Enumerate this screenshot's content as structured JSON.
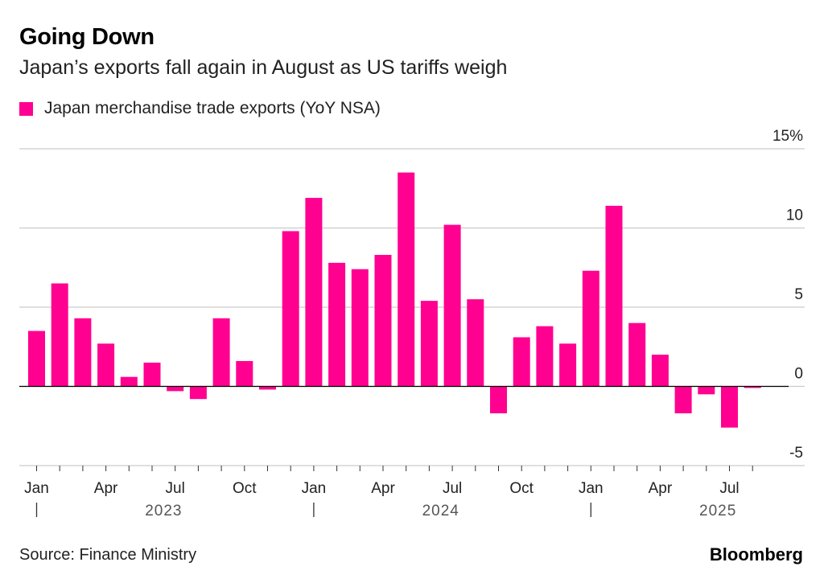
{
  "title": "Going Down",
  "subtitle": "Japan’s exports fall again in August as US tariffs weigh",
  "source": "Source: Finance Ministry",
  "brand": "Bloomberg",
  "colors": {
    "bar": "#ff0090",
    "grid": "#cccccc",
    "axis": "#000000"
  },
  "chart_data": {
    "type": "bar",
    "title": "Going Down",
    "series": [
      {
        "name": "Japan merchandise trade exports (YoY NSA)",
        "values": [
          3.5,
          6.5,
          4.3,
          2.7,
          0.6,
          1.5,
          -0.3,
          -0.8,
          4.3,
          1.6,
          -0.2,
          9.8,
          11.9,
          7.8,
          7.4,
          8.3,
          13.5,
          5.4,
          10.2,
          5.5,
          -1.7,
          3.1,
          3.8,
          2.7,
          7.3,
          11.4,
          4.0,
          2.0,
          -1.7,
          -0.5,
          -2.6,
          -0.1
        ]
      }
    ],
    "categories": [
      "Jan 2023",
      "Feb 2023",
      "Mar 2023",
      "Apr 2023",
      "May 2023",
      "Jun 2023",
      "Jul 2023",
      "Aug 2023",
      "Sep 2023",
      "Oct 2023",
      "Nov 2023",
      "Dec 2023",
      "Jan 2024",
      "Feb 2024",
      "Mar 2024",
      "Apr 2024",
      "May 2024",
      "Jun 2024",
      "Jul 2024",
      "Aug 2024",
      "Sep 2024",
      "Oct 2024",
      "Nov 2024",
      "Dec 2024",
      "Jan 2025",
      "Feb 2025",
      "Mar 2025",
      "Apr 2025",
      "May 2025",
      "Jun 2025",
      "Jul 2025",
      "Aug 2025"
    ],
    "x_tick_labels": [
      {
        "index": 0,
        "label": "Jan"
      },
      {
        "index": 3,
        "label": "Apr"
      },
      {
        "index": 6,
        "label": "Jul"
      },
      {
        "index": 9,
        "label": "Oct"
      },
      {
        "index": 12,
        "label": "Jan"
      },
      {
        "index": 15,
        "label": "Apr"
      },
      {
        "index": 18,
        "label": "Jul"
      },
      {
        "index": 21,
        "label": "Oct"
      },
      {
        "index": 24,
        "label": "Jan"
      },
      {
        "index": 27,
        "label": "Apr"
      },
      {
        "index": 30,
        "label": "Jul"
      }
    ],
    "year_labels": [
      {
        "label": "2023",
        "start": 0,
        "end": 11
      },
      {
        "label": "2024",
        "start": 12,
        "end": 23
      },
      {
        "label": "2025",
        "start": 24,
        "end": 31
      }
    ],
    "y_ticks": [
      {
        "value": 15,
        "label": "15%"
      },
      {
        "value": 10,
        "label": "10"
      },
      {
        "value": 5,
        "label": "5"
      },
      {
        "value": 0,
        "label": "0"
      },
      {
        "value": -5,
        "label": "-5"
      }
    ],
    "ylim": [
      -5,
      15
    ],
    "xlabel": "",
    "ylabel": "",
    "grid": true,
    "legend": "top-left"
  }
}
